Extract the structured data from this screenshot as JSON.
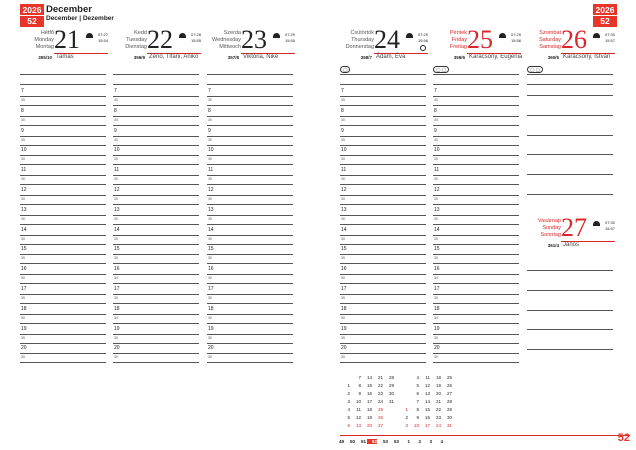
{
  "header": {
    "year": "2026",
    "week": "52",
    "month": "December",
    "month_sub": "December | Dezember"
  },
  "days": [
    {
      "names": [
        "Hétfő",
        "Monday",
        "Montag"
      ],
      "num": "21",
      "sunrise": "07:27",
      "sunset": "15:54",
      "doy": "355/10",
      "nameday": "Tamás",
      "red": false
    },
    {
      "names": [
        "Kedd",
        "Tuesday",
        "Dienstag"
      ],
      "num": "22",
      "sunrise": "07:28",
      "sunset": "15:55",
      "doy": "356/9",
      "nameday": "Zénó, Tifani, Anikó",
      "red": false
    },
    {
      "names": [
        "Szerda",
        "Wednesday",
        "Mittwoch"
      ],
      "num": "23",
      "sunrise": "07:29",
      "sunset": "15:55",
      "doy": "357/8",
      "nameday": "Viktória, Niké",
      "red": false
    },
    {
      "names": [
        "Csütörtök",
        "Thursday",
        "Donnerstag"
      ],
      "num": "24",
      "sunrise": "07:29",
      "sunset": "15:56",
      "doy": "358/7",
      "nameday": "Ádám, Éva",
      "red": false,
      "moon": "full-moon"
    },
    {
      "names": [
        "Péntek",
        "Friday",
        "Freitag"
      ],
      "num": "25",
      "sunrise": "07:29",
      "sunset": "15:56",
      "doy": "359/6",
      "nameday": "Karácsony, Eugénia",
      "red": true
    },
    {
      "names": [
        "Szombat",
        "Saturday",
        "Samstag"
      ],
      "num": "26",
      "sunrise": "07:30",
      "sunset": "15:57",
      "doy": "360/5",
      "nameday": "Karácsony, István",
      "red": true
    },
    {
      "names": [
        "Vasárnap",
        "Sunday",
        "Sonntag"
      ],
      "num": "27",
      "sunrise": "07:30",
      "sunset": "15:57",
      "doy": "361/4",
      "nameday": "János",
      "red": true
    }
  ],
  "hours": [
    "7",
    "8",
    "9",
    "10",
    "11",
    "12",
    "13",
    "14",
    "15",
    "16",
    "17",
    "18",
    "19",
    "20"
  ],
  "half_label": "30",
  "mini_calendar": {
    "december": [
      [
        "",
        "7",
        "14",
        "21",
        "28"
      ],
      [
        "1",
        "8",
        "15",
        "22",
        "29"
      ],
      [
        "2",
        "9",
        "16",
        "23",
        "30"
      ],
      [
        "3",
        "10",
        "17",
        "24",
        "31"
      ],
      [
        "4",
        "11",
        "18",
        "25",
        ""
      ],
      [
        "5",
        "12",
        "19",
        "26",
        ""
      ],
      [
        "6",
        "13",
        "20",
        "27",
        ""
      ]
    ],
    "january": [
      [
        "",
        "4",
        "11",
        "18",
        "25"
      ],
      [
        "",
        "5",
        "12",
        "19",
        "26"
      ],
      [
        "",
        "6",
        "13",
        "20",
        "27"
      ],
      [
        "",
        "7",
        "14",
        "21",
        "28"
      ],
      [
        "1",
        "8",
        "15",
        "22",
        "29"
      ],
      [
        "2",
        "9",
        "16",
        "23",
        "30"
      ],
      [
        "3",
        "10",
        "17",
        "24",
        "31"
      ]
    ],
    "weeks": [
      "49",
      "50",
      "51",
      "52",
      "53",
      "53",
      "1",
      "2",
      "3",
      "4"
    ],
    "current_week": "52"
  },
  "page_number": "52",
  "accent": "#e8352a"
}
